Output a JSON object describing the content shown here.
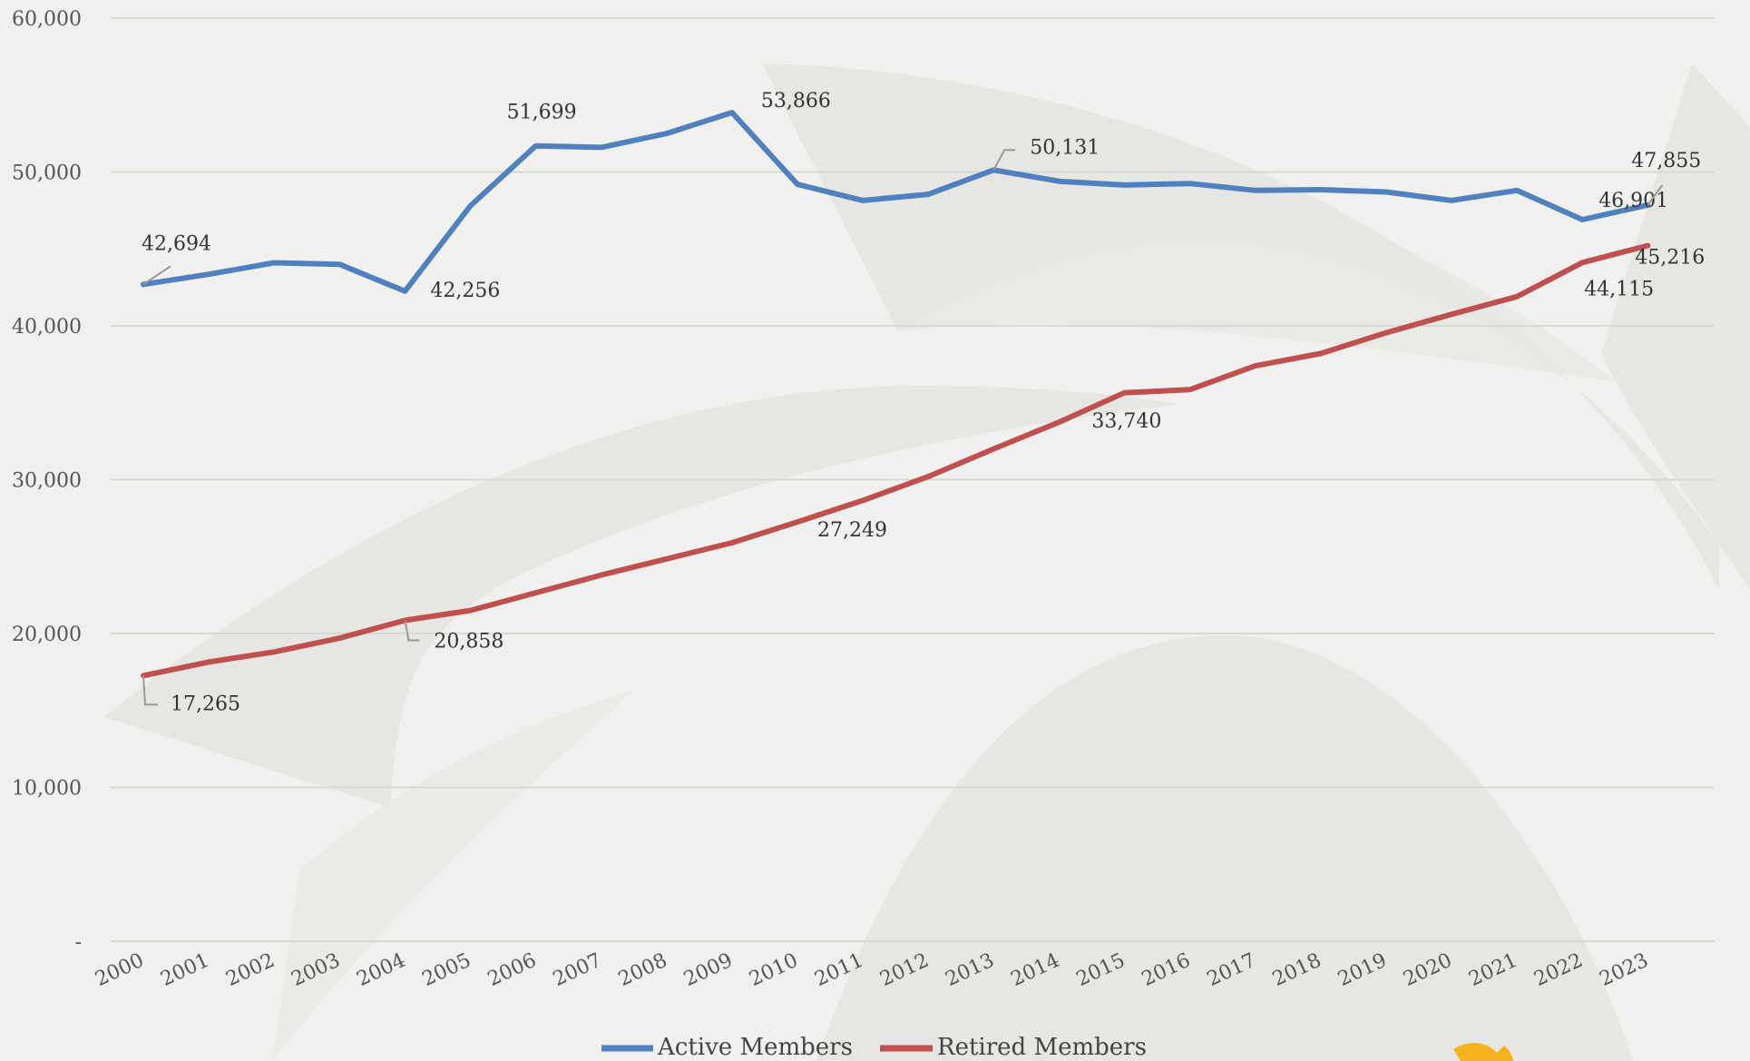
{
  "chart_data": {
    "type": "line",
    "x": [
      "2000",
      "2001",
      "2002",
      "2003",
      "2004",
      "2005",
      "2006",
      "2007",
      "2008",
      "2009",
      "2010",
      "2011",
      "2012",
      "2013",
      "2014",
      "2015",
      "2016",
      "2017",
      "2018",
      "2019",
      "2020",
      "2021",
      "2022",
      "2023"
    ],
    "ylim": [
      0,
      60000
    ],
    "yticks": [
      0,
      10000,
      20000,
      30000,
      40000,
      50000,
      60000
    ],
    "ytick_labels": [
      "-",
      "10,000",
      "20,000",
      "30,000",
      "40,000",
      "50,000",
      "60,000"
    ],
    "grid": true,
    "legend": "bottom",
    "series": [
      {
        "name": "Active Members",
        "color": "#4f81c0",
        "values": [
          42694,
          43350,
          44100,
          44000,
          42256,
          47800,
          51699,
          51600,
          52500,
          53866,
          49200,
          48150,
          48550,
          50131,
          49400,
          49150,
          49250,
          48800,
          48850,
          48700,
          48150,
          48800,
          46901,
          47855
        ],
        "labels": [
          {
            "i": 0,
            "text": "42,694"
          },
          {
            "i": 4,
            "text": "42,256"
          },
          {
            "i": 6,
            "text": "51,699"
          },
          {
            "i": 9,
            "text": "53,866"
          },
          {
            "i": 13,
            "text": "50,131"
          },
          {
            "i": 22,
            "text": "46,901"
          },
          {
            "i": 23,
            "text": "47,855"
          }
        ]
      },
      {
        "name": "Retired Members",
        "color": "#c0504d",
        "values": [
          17265,
          18150,
          18800,
          19700,
          20858,
          21500,
          22650,
          23800,
          24850,
          25900,
          27249,
          28650,
          30200,
          32000,
          33740,
          35650,
          35850,
          37400,
          38200,
          39550,
          40750,
          41900,
          44115,
          45216
        ],
        "labels": [
          {
            "i": 0,
            "text": "17,265"
          },
          {
            "i": 4,
            "text": "20,858"
          },
          {
            "i": 10,
            "text": "27,249"
          },
          {
            "i": 14,
            "text": "33,740"
          },
          {
            "i": 22,
            "text": "44,115"
          },
          {
            "i": 23,
            "text": "45,216"
          }
        ]
      }
    ]
  },
  "legend": {
    "active_label": "Active Members",
    "retired_label": "Retired Members"
  }
}
